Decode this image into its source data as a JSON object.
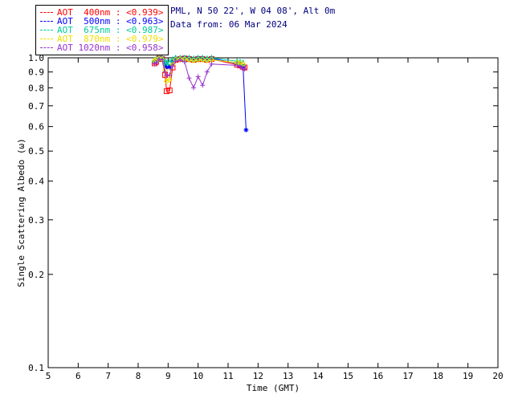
{
  "header": {
    "location_line": "PML, N 50 22', W 04 08', Alt 0m",
    "date_line": "Data from: 06 Mar 2024"
  },
  "legend": {
    "position": "top-left",
    "entries": [
      {
        "label": "AOT  400nm : <0.939>",
        "color": "#ff0000"
      },
      {
        "label": "AOT  500nm : <0.963>",
        "color": "#0000ff"
      },
      {
        "label": "AOT  675nm : <0.987>",
        "color": "#00cc99"
      },
      {
        "label": "AOT  870nm : <0.979>",
        "color": "#f0e000"
      },
      {
        "label": "AOT 1020nm : <0.958>",
        "color": "#9933cc"
      }
    ]
  },
  "chart_data": {
    "type": "line",
    "title": "",
    "xlabel": "Time (GMT)",
    "ylabel": "Single Scattering Albedo (ω)",
    "xlim": [
      5,
      20
    ],
    "ylim": [
      0.1,
      1.0
    ],
    "yscale": "log",
    "grid": false,
    "xticks": [
      "5",
      "6",
      "7",
      "8",
      "9",
      "10",
      "11",
      "12",
      "13",
      "14",
      "15",
      "16",
      "17",
      "18",
      "19",
      "20"
    ],
    "yticks": [
      "0.1",
      "0.2",
      "0.3",
      "0.4",
      "0.5",
      "0.6",
      "0.7",
      "0.8",
      "0.9",
      "1.0"
    ],
    "series": [
      {
        "name": "AOT 400nm",
        "mean": "<0.939>",
        "color": "#ff0000",
        "marker": "square",
        "x": [
          8.55,
          8.6,
          8.7,
          8.8,
          8.9,
          8.95,
          9.05,
          9.15,
          9.25,
          9.4,
          9.55,
          9.7,
          9.85,
          10.0,
          10.15,
          10.3,
          10.45,
          11.3,
          11.4,
          11.5,
          11.55
        ],
        "y": [
          0.96,
          0.97,
          0.995,
          0.99,
          0.88,
          0.78,
          0.785,
          0.93,
          0.985,
          0.99,
          0.995,
          0.99,
          0.985,
          0.99,
          0.99,
          0.985,
          0.99,
          0.95,
          0.945,
          0.935,
          0.93
        ]
      },
      {
        "name": "AOT 500nm",
        "mean": "<0.963>",
        "color": "#0000ff",
        "marker": "star",
        "x": [
          8.55,
          8.6,
          8.7,
          8.8,
          8.9,
          8.95,
          9.05,
          9.15,
          9.25,
          9.4,
          9.55,
          9.7,
          9.85,
          10.0,
          10.15,
          10.3,
          10.45,
          11.3,
          11.4,
          11.5,
          11.6
        ],
        "y": [
          0.975,
          0.985,
          1.0,
          0.995,
          0.95,
          0.93,
          0.935,
          0.97,
          0.99,
          0.995,
          1.0,
          0.995,
          0.99,
          0.995,
          0.995,
          0.99,
          0.995,
          0.96,
          0.95,
          0.935,
          0.585
        ]
      },
      {
        "name": "AOT 675nm",
        "mean": "<0.987>",
        "color": "#00cc99",
        "marker": "triangle",
        "x": [
          8.55,
          8.6,
          8.7,
          8.8,
          8.9,
          8.95,
          9.05,
          9.15,
          9.25,
          9.4,
          9.55,
          9.7,
          9.85,
          10.0,
          10.15,
          10.3,
          10.45,
          11.3,
          11.4,
          11.5
        ],
        "y": [
          0.985,
          0.99,
          1.0,
          1.0,
          0.975,
          0.965,
          0.97,
          0.99,
          1.0,
          1.0,
          1.0,
          1.0,
          0.995,
          1.0,
          1.0,
          0.995,
          1.0,
          0.975,
          0.97,
          0.965
        ]
      },
      {
        "name": "AOT 870nm",
        "mean": "<0.979>",
        "color": "#f0e000",
        "marker": "diamond",
        "x": [
          8.55,
          8.6,
          8.7,
          8.8,
          8.9,
          8.95,
          9.05,
          9.15,
          9.25,
          9.4,
          9.55,
          9.7,
          9.85,
          10.0,
          10.15,
          10.3,
          10.45,
          11.3,
          11.4,
          11.5
        ],
        "y": [
          0.98,
          0.985,
          0.995,
          0.99,
          0.91,
          0.84,
          0.85,
          0.95,
          0.985,
          0.99,
          0.99,
          0.985,
          0.98,
          0.985,
          0.985,
          0.98,
          0.985,
          0.965,
          0.96,
          0.955
        ]
      },
      {
        "name": "AOT 1020nm",
        "mean": "<0.958>",
        "color": "#9933cc",
        "marker": "plus",
        "x": [
          8.55,
          8.6,
          8.7,
          8.8,
          8.9,
          8.95,
          9.05,
          9.15,
          9.25,
          9.4,
          9.55,
          9.7,
          9.85,
          10.0,
          10.15,
          10.3,
          10.45,
          11.3,
          11.4,
          11.5,
          11.55
        ],
        "y": [
          0.955,
          0.965,
          0.99,
          0.985,
          0.9,
          0.875,
          0.88,
          0.94,
          0.975,
          0.985,
          0.97,
          0.86,
          0.8,
          0.87,
          0.815,
          0.9,
          0.955,
          0.945,
          0.935,
          0.92,
          0.92
        ]
      }
    ]
  }
}
